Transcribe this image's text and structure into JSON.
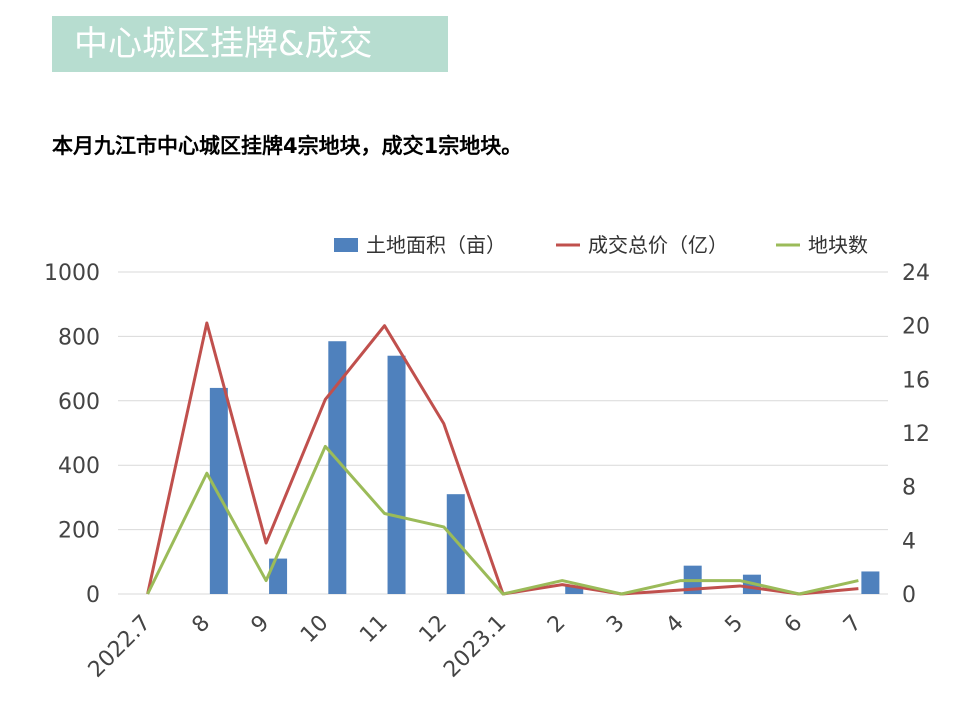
{
  "page": {
    "title": "中心城区挂牌&成交",
    "subtitle": "本月九江市中心城区挂牌4宗地块，成交1宗地块。"
  },
  "colors": {
    "title_bg": "#b7ddd0",
    "bar": "#4f81bd",
    "line_price": "#c0504d",
    "line_count": "#9bbb59",
    "grid": "#d9d9d9"
  },
  "chart_data": {
    "type": "bar+line",
    "categories": [
      "2022.7",
      "8",
      "9",
      "10",
      "11",
      "12",
      "2023.1",
      "2",
      "3",
      "4",
      "5",
      "6",
      "7"
    ],
    "series": [
      {
        "name": "土地面积（亩）",
        "type": "bar",
        "axis": "left",
        "values": [
          0,
          640,
          110,
          785,
          740,
          310,
          0,
          25,
          0,
          88,
          60,
          0,
          70
        ]
      },
      {
        "name": "成交总价（亿）",
        "type": "line",
        "axis": "right",
        "values": [
          0,
          20.2,
          3.8,
          14.5,
          20.0,
          12.7,
          0,
          0.7,
          0,
          0.3,
          0.6,
          0,
          0.4
        ]
      },
      {
        "name": "地块数",
        "type": "line",
        "axis": "right",
        "values": [
          0,
          9,
          1,
          11,
          6,
          5,
          0,
          1,
          0,
          1,
          1,
          0,
          1
        ]
      }
    ],
    "y_left": {
      "min": 0,
      "max": 1000,
      "ticks": [
        "0",
        "200",
        "400",
        "600",
        "800",
        "1000"
      ]
    },
    "y_right": {
      "min": 0,
      "max": 24,
      "ticks": [
        "0",
        "4",
        "8",
        "12",
        "16",
        "20",
        "24"
      ]
    },
    "grid": true,
    "legend": "top-right"
  }
}
